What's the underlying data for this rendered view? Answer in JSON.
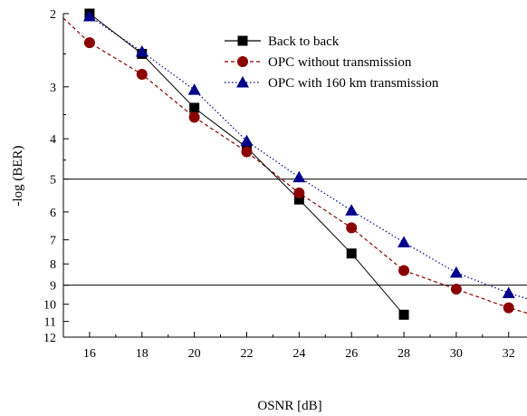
{
  "chart_data": {
    "type": "line",
    "title": "",
    "xlabel": "OSNR [dB]",
    "ylabel": "-log (BER)",
    "xlim": [
      15,
      32.7
    ],
    "x_ticks": [
      16,
      18,
      20,
      22,
      24,
      26,
      28,
      30,
      32
    ],
    "y_scale": "log(-log) — axis reversed, 2 at top, 12 at bottom",
    "ylim": [
      2,
      12
    ],
    "y_ticks": [
      2,
      3,
      4,
      5,
      6,
      7,
      8,
      9,
      10,
      11,
      12
    ],
    "grid": false,
    "legend": "top-right",
    "reference_lines_y": [
      5,
      9
    ],
    "series": [
      {
        "name": "Back to back",
        "marker": "square",
        "line": "solid",
        "color": "#000000",
        "x": [
          16,
          18,
          20,
          22,
          24,
          26,
          28
        ],
        "y": [
          2.0,
          2.5,
          3.37,
          4.2,
          5.6,
          7.55,
          10.6
        ]
      },
      {
        "name": "OPC without transmission",
        "marker": "circle",
        "line": "dashed",
        "color": "#8b0000",
        "x": [
          16,
          18,
          20,
          22,
          24,
          26,
          28,
          30,
          32
        ],
        "y": [
          2.35,
          2.8,
          3.55,
          4.3,
          5.4,
          6.55,
          8.3,
          9.2,
          10.2
        ]
      },
      {
        "name": "OPC with 160 km transmission",
        "marker": "triangle",
        "line": "dotted",
        "color": "#00008b",
        "x": [
          16,
          18,
          20,
          22,
          24,
          26,
          28,
          30,
          32
        ],
        "y": [
          2.03,
          2.47,
          3.05,
          4.05,
          4.95,
          5.95,
          7.1,
          8.4,
          9.4
        ]
      }
    ],
    "trend_lines": [
      {
        "series": "OPC without transmission",
        "x_range": [
          15,
          32.7
        ],
        "y_at_start": 2.05,
        "y_at_end": 10.5
      },
      {
        "series": "OPC with 160 km transmission",
        "x_range": [
          16,
          32.7
        ],
        "y_at_start": 2.0,
        "y_at_end": 9.7
      }
    ]
  }
}
